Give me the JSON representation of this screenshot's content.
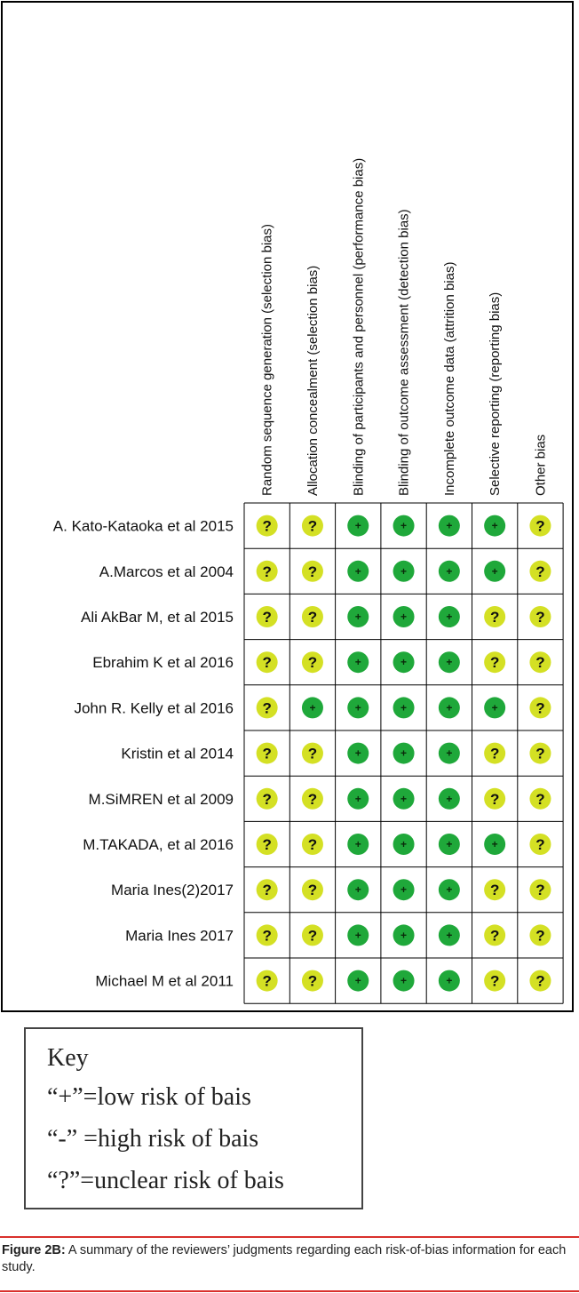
{
  "chart_data": {
    "type": "table",
    "columns": [
      "Random sequence generation (selection bias)",
      "Allocation concealment (selection bias)",
      "Blinding of participants and personnel (performance bias)",
      "Blinding of outcome assessment (detection bias)",
      "Incomplete outcome data (attrition bias)",
      "Selective reporting (reporting bias)",
      "Other bias"
    ],
    "rows": [
      {
        "study": "A. Kato-Kataoka et al 2015",
        "values": [
          "?",
          "?",
          "+",
          "+",
          "+",
          "+",
          "?"
        ]
      },
      {
        "study": "A.Marcos et al 2004",
        "values": [
          "?",
          "?",
          "+",
          "+",
          "+",
          "+",
          "?"
        ]
      },
      {
        "study": "Ali AkBar M, et al 2015",
        "values": [
          "?",
          "?",
          "+",
          "+",
          "+",
          "?",
          "?"
        ]
      },
      {
        "study": "Ebrahim K et al 2016",
        "values": [
          "?",
          "?",
          "+",
          "+",
          "+",
          "?",
          "?"
        ]
      },
      {
        "study": "John R. Kelly et al 2016",
        "values": [
          "?",
          "+",
          "+",
          "+",
          "+",
          "+",
          "?"
        ]
      },
      {
        "study": "Kristin et al 2014",
        "values": [
          "?",
          "?",
          "+",
          "+",
          "+",
          "?",
          "?"
        ]
      },
      {
        "study": "M.SiMREN et al 2009",
        "values": [
          "?",
          "?",
          "+",
          "+",
          "+",
          "?",
          "?"
        ]
      },
      {
        "study": "M.TAKADA, et al 2016",
        "values": [
          "?",
          "?",
          "+",
          "+",
          "+",
          "+",
          "?"
        ]
      },
      {
        "study": "Maria Ines(2)2017",
        "values": [
          "?",
          "?",
          "+",
          "+",
          "+",
          "?",
          "?"
        ]
      },
      {
        "study": "Maria Ines 2017",
        "values": [
          "?",
          "?",
          "+",
          "+",
          "+",
          "?",
          "?"
        ]
      },
      {
        "study": "Michael M et al 2011",
        "values": [
          "?",
          "?",
          "+",
          "+",
          "+",
          "?",
          "?"
        ]
      }
    ]
  },
  "colors": {
    "low_risk": "#1fa83a",
    "unclear_risk": "#d4e024",
    "high_risk": "#d62728",
    "caption_rule": "#d9302c"
  },
  "key": {
    "title": "Key",
    "lines": [
      "“+”=low risk of bais",
      "“-” =high risk of bais",
      "“?”=unclear risk of bais"
    ]
  },
  "caption": {
    "label": "Figure 2B:",
    "text": " A summary of the reviewers’ judgments regarding each risk-of-bias information for each study."
  }
}
